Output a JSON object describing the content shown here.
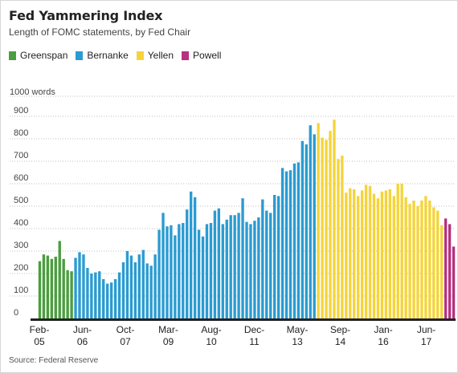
{
  "header": {
    "title": "Fed Yammering Index",
    "subtitle": "Length of FOMC statements, by Fed Chair"
  },
  "legend": [
    {
      "label": "Greenspan",
      "color": "#4a9e3f"
    },
    {
      "label": "Bernanke",
      "color": "#2b9bd1"
    },
    {
      "label": "Yellen",
      "color": "#f5d43a"
    },
    {
      "label": "Powell",
      "color": "#b8307f"
    }
  ],
  "source": "Source: Federal Reserve",
  "chart_data": {
    "type": "bar",
    "ylabel": "1000 words",
    "ylim": [
      0,
      1000
    ],
    "yticks": [
      "0",
      "100",
      "200",
      "300",
      "400",
      "500",
      "600",
      "700",
      "800",
      "900"
    ],
    "x_tick_labels": [
      {
        "month": "Feb-",
        "year": "05"
      },
      {
        "month": "Jun-",
        "year": "06"
      },
      {
        "month": "Oct-",
        "year": "07"
      },
      {
        "month": "Mar-",
        "year": "09"
      },
      {
        "month": "Aug-",
        "year": "10"
      },
      {
        "month": "Dec-",
        "year": "11"
      },
      {
        "month": "May-",
        "year": "13"
      },
      {
        "month": "Sep-",
        "year": "14"
      },
      {
        "month": "Jan-",
        "year": "16"
      },
      {
        "month": "Jun-",
        "year": "17"
      }
    ],
    "series": [
      {
        "name": "Greenspan",
        "color": "#4a9e3f",
        "values": [
          255,
          285,
          280,
          265,
          275,
          345,
          265,
          215,
          210
        ]
      },
      {
        "name": "Bernanke",
        "color": "#2b9bd1",
        "values": [
          270,
          295,
          285,
          225,
          200,
          205,
          210,
          175,
          155,
          160,
          175,
          205,
          250,
          300,
          280,
          250,
          285,
          305,
          245,
          235,
          285,
          395,
          470,
          410,
          415,
          370,
          420,
          425,
          485,
          565,
          540,
          395,
          365,
          420,
          425,
          480,
          490,
          420,
          440,
          460,
          460,
          470,
          535,
          430,
          420,
          435,
          450,
          530,
          480,
          470,
          550,
          545,
          670,
          655,
          660,
          690,
          695,
          790,
          775,
          860,
          820
        ]
      },
      {
        "name": "Yellen",
        "color": "#f5d43a",
        "values": [
          870,
          805,
          795,
          835,
          885,
          710,
          725,
          560,
          580,
          575,
          545,
          570,
          595,
          590,
          555,
          535,
          565,
          570,
          575,
          545,
          600,
          600,
          540,
          510,
          525,
          500,
          525,
          545,
          525,
          495,
          480,
          415
        ]
      },
      {
        "name": "Powell",
        "color": "#b8307f",
        "values": [
          445,
          420,
          320
        ]
      }
    ]
  }
}
